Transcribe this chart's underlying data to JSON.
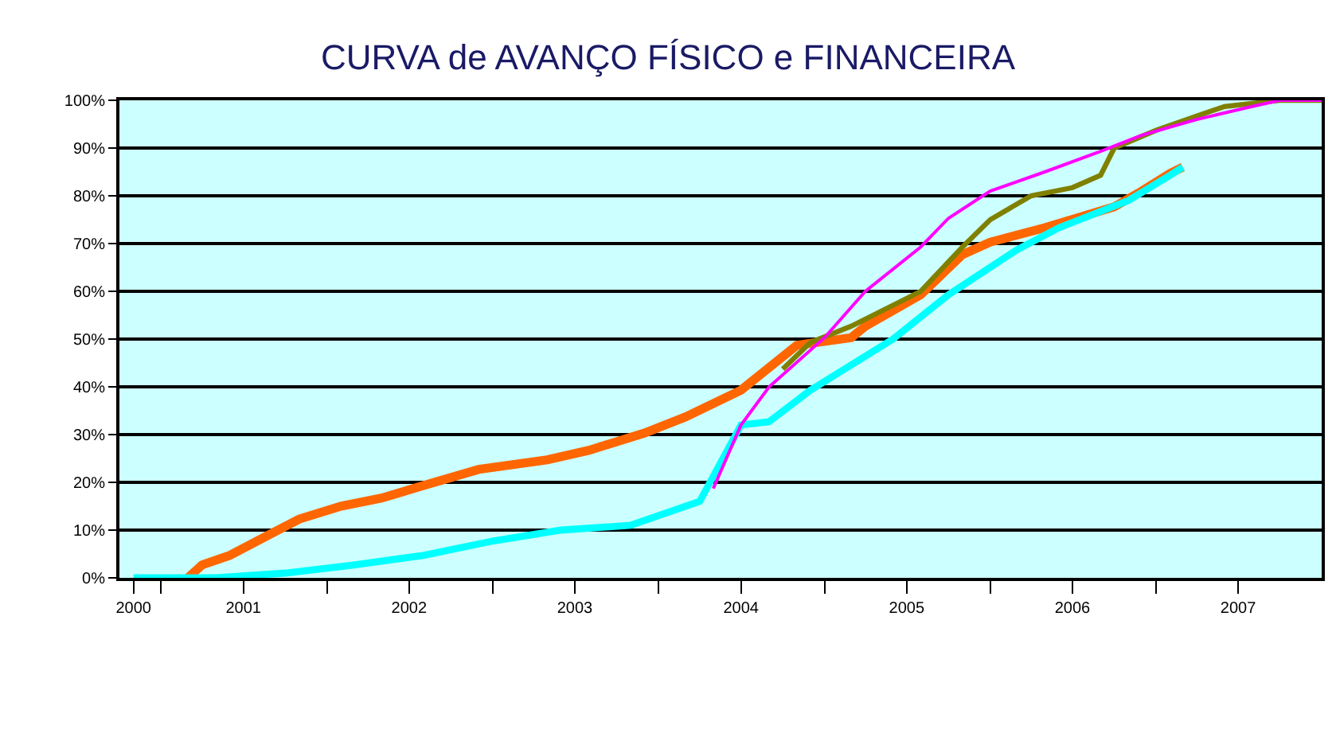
{
  "chart_data": {
    "type": "line",
    "title": "CURVA de AVANÇO FÍSICO e FINANCEIRA",
    "xlim": [
      "2000-10",
      "2008-01"
    ],
    "xticks": [
      {
        "value": "2000-11",
        "label": "2000"
      },
      {
        "value": "2001-01",
        "label": null
      },
      {
        "value": "2001-07",
        "label": "2001"
      },
      {
        "value": "2002-01",
        "label": null
      },
      {
        "value": "2002-07",
        "label": "2002"
      },
      {
        "value": "2003-01",
        "label": null
      },
      {
        "value": "2003-07",
        "label": "2003"
      },
      {
        "value": "2004-01",
        "label": null
      },
      {
        "value": "2004-07",
        "label": "2004"
      },
      {
        "value": "2005-01",
        "label": null
      },
      {
        "value": "2005-07",
        "label": "2005"
      },
      {
        "value": "2006-01",
        "label": null
      },
      {
        "value": "2006-07",
        "label": "2006"
      },
      {
        "value": "2007-01",
        "label": null
      },
      {
        "value": "2007-07",
        "label": "2007"
      }
    ],
    "ylim": [
      0,
      100
    ],
    "yticks": [
      {
        "value": 0,
        "label": "0%"
      },
      {
        "value": 10,
        "label": "10%"
      },
      {
        "value": 20,
        "label": "20%"
      },
      {
        "value": 30,
        "label": "30%"
      },
      {
        "value": 40,
        "label": "40%"
      },
      {
        "value": 50,
        "label": "50%"
      },
      {
        "value": 60,
        "label": "60%"
      },
      {
        "value": 70,
        "label": "70%"
      },
      {
        "value": 80,
        "label": "80%"
      },
      {
        "value": 90,
        "label": "90%"
      },
      {
        "value": 100,
        "label": "100%"
      }
    ],
    "grid": "y",
    "marker": "none",
    "line_style": "solid",
    "series": [
      {
        "color": "#ff6600",
        "x": [
          "2001-03",
          "2001-04",
          "2001-06",
          "2001-09",
          "2001-11",
          "2002-02",
          "2002-05",
          "2002-08",
          "2002-12",
          "2003-05",
          "2003-08",
          "2003-12",
          "2004-03",
          "2004-07",
          "2004-11",
          "2005-03",
          "2005-04",
          "2005-08",
          "2005-11",
          "2006-01",
          "2006-05",
          "2006-10",
          "2006-12",
          "2007-02",
          "2007-03"
        ],
        "values": [
          0,
          2.7,
          4.7,
          9.3,
          12.3,
          15,
          16.7,
          19.3,
          22.7,
          24.7,
          26.7,
          30.3,
          33.7,
          39.3,
          48.7,
          50.3,
          52.7,
          59.3,
          67.7,
          70.3,
          73.3,
          77.7,
          81,
          84.7,
          86
        ]
      },
      {
        "color": "#00ffff",
        "x": [
          "2000-11",
          "2001-05",
          "2001-10",
          "2002-03",
          "2002-08",
          "2003-01",
          "2003-06",
          "2003-11",
          "2004-04",
          "2004-07",
          "2004-09",
          "2004-12",
          "2005-06",
          "2005-10",
          "2006-03",
          "2006-06",
          "2006-11",
          "2007-02",
          "2007-03"
        ],
        "values": [
          0,
          0,
          1,
          2.7,
          4.7,
          7.7,
          10,
          11,
          16,
          32,
          32.7,
          39.3,
          50,
          59.3,
          68.7,
          73.3,
          79,
          84.3,
          86
        ]
      },
      {
        "color": "#808000",
        "x": [
          "2004-10",
          "2004-12",
          "2005-03",
          "2005-08",
          "2005-11",
          "2006-01",
          "2006-04",
          "2006-07",
          "2006-09",
          "2006-10",
          "2007-01",
          "2007-04",
          "2007-06",
          "2007-10",
          "2008-01"
        ],
        "values": [
          43.7,
          49.3,
          52.7,
          60,
          69.3,
          75,
          80,
          81.7,
          84.3,
          90,
          93.7,
          96.7,
          98.7,
          100,
          100
        ]
      },
      {
        "color": "#ff00ff",
        "x": [
          "2004-05",
          "2004-07",
          "2004-09",
          "2005-01",
          "2005-04",
          "2005-08",
          "2005-10",
          "2006-01",
          "2006-05",
          "2006-09",
          "2006-12",
          "2007-04",
          "2007-08",
          "2007-10",
          "2008-01"
        ],
        "values": [
          18.7,
          32,
          40,
          50.3,
          60,
          69.3,
          75.3,
          81,
          85,
          89.3,
          92.7,
          96,
          98.7,
          100,
          100
        ]
      }
    ]
  }
}
